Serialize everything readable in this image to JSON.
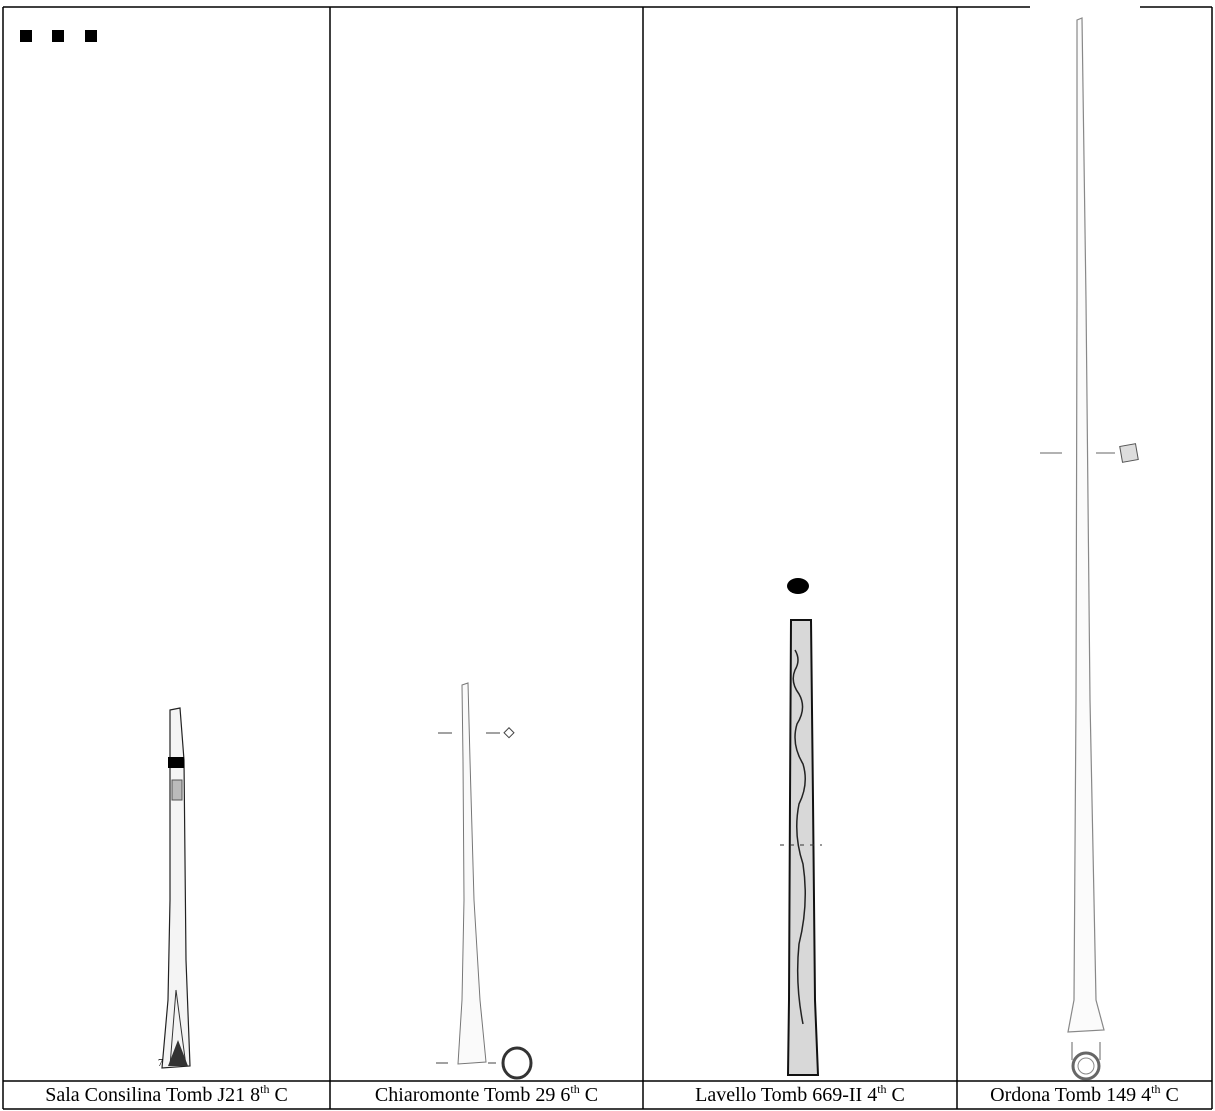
{
  "figure_marks": [
    "7"
  ],
  "captions": [
    {
      "text": "Sala Consilina Tomb J21 8",
      "sup": "th",
      "suffix": "C"
    },
    {
      "text": "Chiaromonte Tomb 29 6",
      "sup": "th",
      "suffix": "C"
    },
    {
      "text": "Lavello Tomb 669-II 4",
      "sup": "th",
      "suffix": "C"
    },
    {
      "text": "Ordona Tomb 149 4",
      "sup": "th",
      "suffix": "C"
    }
  ]
}
